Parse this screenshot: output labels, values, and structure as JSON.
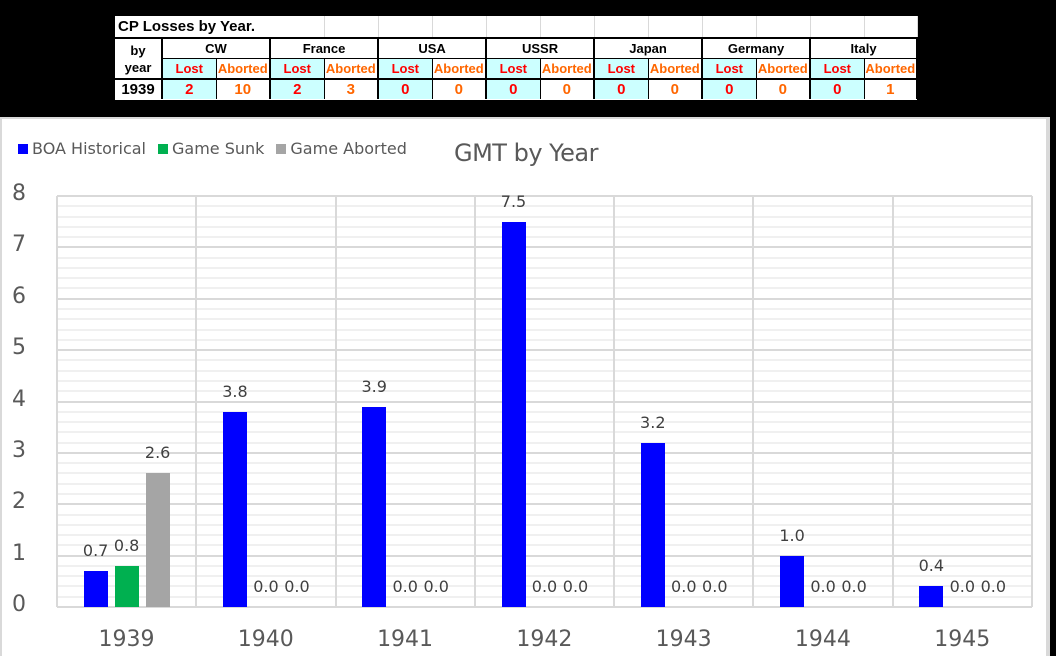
{
  "table": {
    "title": "CP Losses by Year.",
    "year_header_1": "by",
    "year_header_2": "year",
    "lost_label": "Lost",
    "aborted_label": "Aborted",
    "nations": [
      {
        "name": "CW",
        "lost": "2",
        "aborted": "10"
      },
      {
        "name": "France",
        "lost": "2",
        "aborted": "3"
      },
      {
        "name": "USA",
        "lost": "0",
        "aborted": "0"
      },
      {
        "name": "USSR",
        "lost": "0",
        "aborted": "0"
      },
      {
        "name": "Japan",
        "lost": "0",
        "aborted": "0"
      },
      {
        "name": "Germany",
        "lost": "0",
        "aborted": "0"
      },
      {
        "name": "Italy",
        "lost": "0",
        "aborted": "1"
      }
    ],
    "year": "1939",
    "colors": {
      "lost": "#ff0000",
      "aborted": "#ff6600",
      "highlight": "#ccffff"
    }
  },
  "chart_data": {
    "type": "bar",
    "title": "GMT by Year",
    "xlabel": "",
    "ylabel": "",
    "ylim": [
      0,
      8
    ],
    "yticks": [
      "0",
      "1",
      "2",
      "3",
      "4",
      "5",
      "6",
      "7",
      "8"
    ],
    "grid": true,
    "legend_position": "top-left",
    "categories": [
      "1939",
      "1940",
      "1941",
      "1942",
      "1943",
      "1944",
      "1945"
    ],
    "series": [
      {
        "name": "BOA Historical",
        "color": "#0000ff",
        "values": [
          0.7,
          3.8,
          3.9,
          7.5,
          3.2,
          1.0,
          0.4
        ],
        "labels": [
          "0.7",
          "3.8",
          "3.9",
          "7.5",
          "3.2",
          "1.0",
          "0.4"
        ]
      },
      {
        "name": "Game Sunk",
        "color": "#00b050",
        "values": [
          0.8,
          0.0,
          0.0,
          0.0,
          0.0,
          0.0,
          0.0
        ],
        "labels": [
          "0.8",
          "0.0",
          "0.0",
          "0.0",
          "0.0",
          "0.0",
          "0.0"
        ]
      },
      {
        "name": "Game Aborted",
        "color": "#a5a5a5",
        "values": [
          2.6,
          0.0,
          0.0,
          0.0,
          0.0,
          0.0,
          0.0
        ],
        "labels": [
          "2.6",
          "0.0",
          "0.0",
          "0.0",
          "0.0",
          "0.0",
          "0.0"
        ]
      }
    ]
  }
}
